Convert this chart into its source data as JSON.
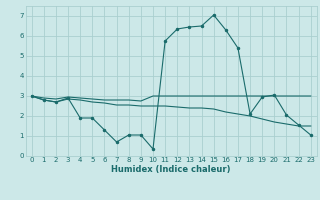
{
  "xlabel": "Humidex (Indice chaleur)",
  "xlim": [
    -0.5,
    23.5
  ],
  "ylim": [
    0,
    7.5
  ],
  "yticks": [
    0,
    1,
    2,
    3,
    4,
    5,
    6,
    7
  ],
  "xticks": [
    0,
    1,
    2,
    3,
    4,
    5,
    6,
    7,
    8,
    9,
    10,
    11,
    12,
    13,
    14,
    15,
    16,
    17,
    18,
    19,
    20,
    21,
    22,
    23
  ],
  "bg_color": "#cce8e8",
  "line_color": "#1a6b6b",
  "grid_color": "#aacfcf",
  "line1_x": [
    0,
    1,
    2,
    3,
    4,
    5,
    6,
    7,
    8,
    9,
    10,
    11,
    12,
    13,
    14,
    15,
    16,
    17,
    18,
    19,
    20,
    21,
    22,
    23
  ],
  "line1_y": [
    3.0,
    2.9,
    2.85,
    2.95,
    2.9,
    2.85,
    2.8,
    2.8,
    2.8,
    2.75,
    3.0,
    3.0,
    3.0,
    3.0,
    3.0,
    3.0,
    3.0,
    3.0,
    3.0,
    3.0,
    3.0,
    3.0,
    3.0,
    3.0
  ],
  "line2_x": [
    0,
    1,
    2,
    3,
    4,
    5,
    6,
    7,
    8,
    9,
    10,
    11,
    12,
    13,
    14,
    15,
    16,
    17,
    18,
    19,
    20,
    21,
    22,
    23
  ],
  "line2_y": [
    3.0,
    2.8,
    2.7,
    2.85,
    2.8,
    2.7,
    2.65,
    2.55,
    2.55,
    2.5,
    2.5,
    2.5,
    2.45,
    2.4,
    2.4,
    2.35,
    2.2,
    2.1,
    2.0,
    1.85,
    1.7,
    1.6,
    1.5,
    1.5
  ],
  "line3_x": [
    0,
    1,
    2,
    3,
    4,
    5,
    6,
    7,
    8,
    9,
    10,
    11,
    12,
    13,
    14,
    15,
    16,
    17,
    18,
    19,
    20,
    21,
    22,
    23
  ],
  "line3_y": [
    3.0,
    2.8,
    2.7,
    2.9,
    1.9,
    1.9,
    1.3,
    0.7,
    1.05,
    1.05,
    0.35,
    5.75,
    6.35,
    6.45,
    6.5,
    7.05,
    6.3,
    5.4,
    2.1,
    2.95,
    3.05,
    2.05,
    1.55,
    1.05
  ]
}
